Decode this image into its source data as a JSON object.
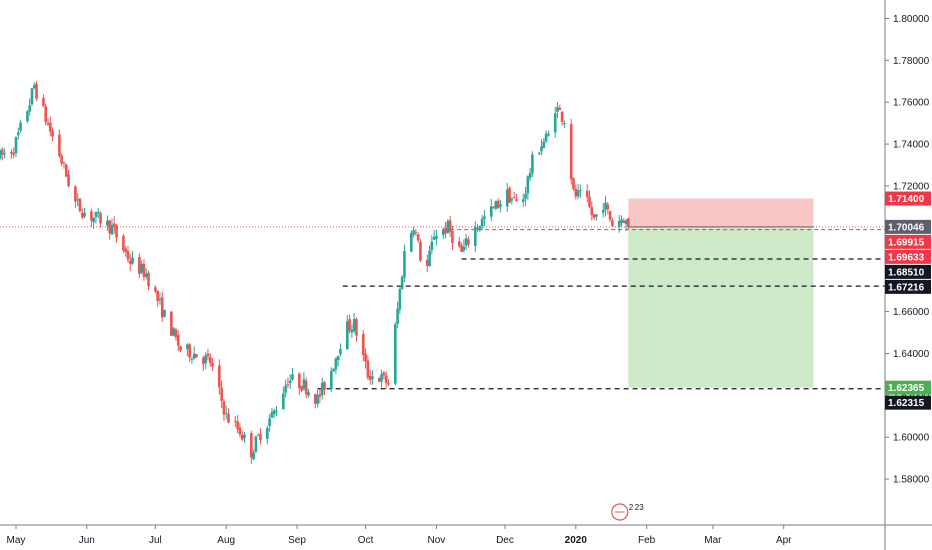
{
  "chart_data": {
    "type": "candlestick",
    "instrument_note": "",
    "colors": {
      "up": "#26a69a",
      "down": "#ef5350",
      "axis_text": "#131722",
      "axis_line": "#787b86",
      "current_price_line": "#ef5350",
      "stop_zone": "#f7c6c5",
      "target_zone": "#cde9c8",
      "badge_red": "#f23645",
      "badge_black": "#131722",
      "badge_green": "#4caf50",
      "badge_gray": "#5d606b"
    },
    "y_axis": {
      "min": 1.57,
      "max": 1.805,
      "ticks": [
        "1.80000",
        "1.78000",
        "1.76000",
        "1.74000",
        "1.72000",
        "1.70000",
        "1.68000",
        "1.66000",
        "1.64000",
        "1.62000",
        "1.60000",
        "1.58000"
      ]
    },
    "x_axis": {
      "start": "2019-04-24",
      "end": "2020-04-30",
      "labels": [
        {
          "date": "2019-05-01",
          "text": "May",
          "bold": false
        },
        {
          "date": "2019-06-01",
          "text": "Jun",
          "bold": false
        },
        {
          "date": "2019-07-01",
          "text": "Jul",
          "bold": false
        },
        {
          "date": "2019-08-01",
          "text": "Aug",
          "bold": false
        },
        {
          "date": "2019-09-01",
          "text": "Sep",
          "bold": false
        },
        {
          "date": "2019-10-01",
          "text": "Oct",
          "bold": false
        },
        {
          "date": "2019-11-01",
          "text": "Nov",
          "bold": false
        },
        {
          "date": "2019-12-01",
          "text": "Dec",
          "bold": false
        },
        {
          "date": "2020-01-01",
          "text": "2020",
          "bold": true
        },
        {
          "date": "2020-02-01",
          "text": "Feb",
          "bold": false
        },
        {
          "date": "2020-03-01",
          "text": "Mar",
          "bold": false
        },
        {
          "date": "2020-04-01",
          "text": "Apr",
          "bold": false
        }
      ]
    },
    "price_path": [
      [
        "2019-04-24",
        1.734
      ],
      [
        "2019-04-30",
        1.738
      ],
      [
        "2019-05-07",
        1.76
      ],
      [
        "2019-05-09",
        1.768
      ],
      [
        "2019-05-14",
        1.752
      ],
      [
        "2019-05-20",
        1.735
      ],
      [
        "2019-05-27",
        1.712
      ],
      [
        "2019-06-01",
        1.706
      ],
      [
        "2019-06-07",
        1.704
      ],
      [
        "2019-06-12",
        1.7
      ],
      [
        "2019-06-20",
        1.684
      ],
      [
        "2019-06-27",
        1.678
      ],
      [
        "2019-07-05",
        1.658
      ],
      [
        "2019-07-12",
        1.642
      ],
      [
        "2019-07-18",
        1.64
      ],
      [
        "2019-07-25",
        1.636
      ],
      [
        "2019-08-01",
        1.61
      ],
      [
        "2019-08-07",
        1.603
      ],
      [
        "2019-08-12",
        1.593
      ],
      [
        "2019-08-16",
        1.602
      ],
      [
        "2019-08-22",
        1.612
      ],
      [
        "2019-08-28",
        1.628
      ],
      [
        "2019-09-04",
        1.625
      ],
      [
        "2019-09-10",
        1.618
      ],
      [
        "2019-09-16",
        1.632
      ],
      [
        "2019-09-22",
        1.652
      ],
      [
        "2019-09-26",
        1.654
      ],
      [
        "2019-10-02",
        1.63
      ],
      [
        "2019-10-08",
        1.628
      ],
      [
        "2019-10-11",
        1.626
      ],
      [
        "2019-10-14",
        1.652
      ],
      [
        "2019-10-18",
        1.688
      ],
      [
        "2019-10-22",
        1.702
      ],
      [
        "2019-10-27",
        1.676
      ],
      [
        "2019-10-31",
        1.697
      ],
      [
        "2019-11-06",
        1.7
      ],
      [
        "2019-11-12",
        1.688
      ],
      [
        "2019-11-18",
        1.7
      ],
      [
        "2019-11-25",
        1.708
      ],
      [
        "2019-12-02",
        1.716
      ],
      [
        "2019-12-08",
        1.71
      ],
      [
        "2019-12-14",
        1.736
      ],
      [
        "2019-12-20",
        1.744
      ],
      [
        "2019-12-23",
        1.758
      ],
      [
        "2019-12-27",
        1.752
      ],
      [
        "2019-12-31",
        1.716
      ],
      [
        "2020-01-05",
        1.714
      ],
      [
        "2020-01-09",
        1.704
      ],
      [
        "2020-01-13",
        1.712
      ],
      [
        "2020-01-17",
        1.702
      ],
      [
        "2020-01-22",
        1.705
      ],
      [
        "2020-01-24",
        1.7
      ]
    ],
    "current_price": {
      "value": 1.70046,
      "label": "1.70046"
    },
    "position": {
      "start_date": "2020-01-24",
      "end_date": "2020-04-14",
      "entry": 1.70046,
      "stop": 1.714,
      "target": 1.62365
    },
    "levels": [
      {
        "value": 1.69915,
        "label": "1.69915",
        "line": "red-dashed",
        "start_date": "2019-11-07",
        "badge": "red"
      },
      {
        "value": 1.6851,
        "label": "1.68510",
        "line": "black-dashed",
        "start_date": "2019-11-12",
        "badge": "black"
      },
      {
        "value": 1.67216,
        "label": "1.67216",
        "line": "black-dashed",
        "start_date": "2019-09-21",
        "badge": "black"
      },
      {
        "value": 1.62315,
        "label": "1.62315",
        "line": "black-dashed",
        "start_date": "2019-09-10",
        "badge": "black"
      }
    ],
    "price_badges": [
      {
        "value": 1.714,
        "label": "1.71400",
        "color": "red"
      },
      {
        "value": 1.70046,
        "label": "1.70046",
        "color": "gray"
      },
      {
        "value": 1.69915,
        "label": "1.69915",
        "color": "red"
      },
      {
        "value": 1.69633,
        "label": "1.69633",
        "color": "red"
      },
      {
        "value": 1.6851,
        "label": "1.68510",
        "color": "black"
      },
      {
        "value": 1.67216,
        "label": "1.67216",
        "color": "black"
      },
      {
        "value": 1.62365,
        "label": "1.62365",
        "color": "green"
      },
      {
        "value": 1.62315,
        "label": "1.62315",
        "color": "black"
      }
    ],
    "event_marker": {
      "date": "2020-01-22",
      "text_top": "2",
      "text_bottom": "23"
    }
  }
}
